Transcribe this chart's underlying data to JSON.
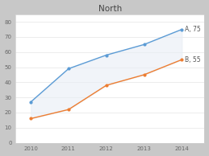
{
  "title": "North",
  "years": [
    2010,
    2011,
    2012,
    2013,
    2014
  ],
  "series_A": [
    27,
    49,
    58,
    65,
    75
  ],
  "series_B": [
    16,
    22,
    38,
    45,
    55
  ],
  "color_A": "#5B9BD5",
  "color_B": "#ED7D31",
  "fill_color": "#E8EEF5",
  "fill_alpha": 0.6,
  "label_A": "A, 75",
  "label_B": "B, 55",
  "ylim": [
    0,
    85
  ],
  "xlim": [
    2009.6,
    2014.6
  ],
  "yticks": [
    0,
    10,
    20,
    30,
    40,
    50,
    60,
    70,
    80
  ],
  "plot_bg_color": "#FFFFFF",
  "outer_bg_color": "#C8C8C8",
  "title_fontsize": 7.5,
  "label_fontsize": 5.5,
  "tick_fontsize": 5.0
}
